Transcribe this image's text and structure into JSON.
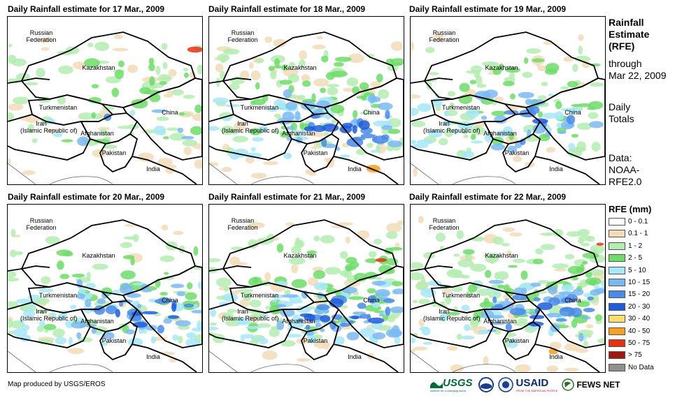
{
  "panels": [
    {
      "title": "Daily Rainfall estimate for 17 Mar., 2009"
    },
    {
      "title": "Daily Rainfall estimate for 18 Mar., 2009"
    },
    {
      "title": "Daily Rainfall estimate for 19 Mar., 2009"
    },
    {
      "title": "Daily Rainfall estimate for 20 Mar., 2009"
    },
    {
      "title": "Daily Rainfall estimate for 21 Mar., 2009"
    },
    {
      "title": "Daily Rainfall estimate for 22 Mar., 2009"
    }
  ],
  "country_labels": {
    "russia": "Russian\nFederation",
    "kazakhstan": "Kazakhstan",
    "turkmenistan": "Turkmenistan",
    "iran": "Iran\n(Islamic Republic of)",
    "afghanistan": "Afghanistan",
    "pakistan": "Pakistan",
    "china": "China",
    "india": "India"
  },
  "sidebar": {
    "heading_line1": "Rainfall",
    "heading_line2": "Estimate",
    "heading_line3": "(RFE)",
    "through_line1": "through",
    "through_line2": "Mar 22, 2009",
    "totals_line1": "Daily",
    "totals_line2": "Totals",
    "data_line1": "Data:",
    "data_line2": "NOAA-",
    "data_line3": "RFE2.0"
  },
  "legend": {
    "title": "RFE (mm)",
    "items": [
      {
        "label": "0 - 0.1",
        "color": "#ffffff"
      },
      {
        "label": "0.1 - 1",
        "color": "#f2dcb8"
      },
      {
        "label": "1 - 2",
        "color": "#b4ecb0"
      },
      {
        "label": "2 - 5",
        "color": "#6fdc6a"
      },
      {
        "label": "5 - 10",
        "color": "#a8e8f8"
      },
      {
        "label": "10 - 15",
        "color": "#7ab8f2"
      },
      {
        "label": "15 - 20",
        "color": "#4a8ae8"
      },
      {
        "label": "20 - 30",
        "color": "#1f5cd8"
      },
      {
        "label": "30 - 40",
        "color": "#f8e070"
      },
      {
        "label": "40 - 50",
        "color": "#f4a020"
      },
      {
        "label": "50 - 75",
        "color": "#e83010"
      },
      {
        "label": "> 75",
        "color": "#a01810"
      },
      {
        "label": "No Data",
        "color": "#909090"
      }
    ]
  },
  "footer": {
    "credit": "Map produced by USGS/EROS"
  },
  "logos": {
    "usgs": "USGS",
    "usgs_tagline": "science for a changing world",
    "usaid": "USAID",
    "usaid_tagline": "FROM THE AMERICAN PEOPLE",
    "fewsnet": "FEWS NET"
  },
  "rain_intensity": [
    {
      "green": 0.35,
      "blue": 0.05,
      "tan": 0.25
    },
    {
      "green": 0.45,
      "blue": 0.4,
      "tan": 0.35
    },
    {
      "green": 0.4,
      "blue": 0.35,
      "tan": 0.25
    },
    {
      "green": 0.35,
      "blue": 0.55,
      "tan": 0.15
    },
    {
      "green": 0.45,
      "blue": 0.55,
      "tan": 0.25
    },
    {
      "green": 0.6,
      "blue": 0.45,
      "tan": 0.3
    }
  ]
}
